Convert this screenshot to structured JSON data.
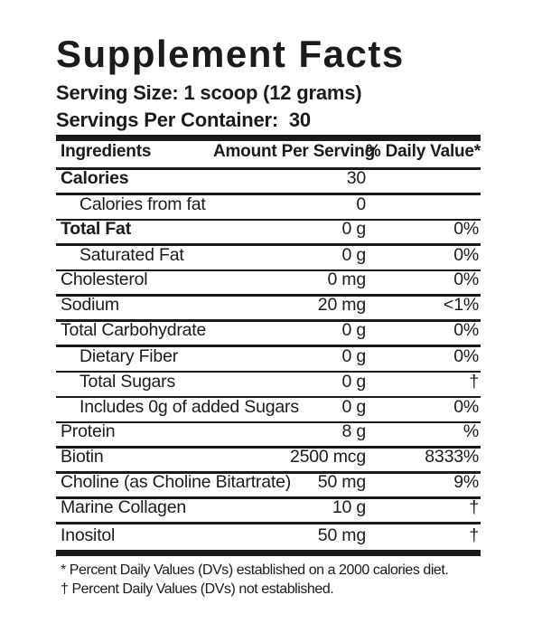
{
  "label": {
    "title": "Supplement Facts",
    "serving_size": "Serving Size: 1 scoop (12 grams)",
    "servings_per_container": "Servings Per Container:  30",
    "table": {
      "headers": {
        "ingredients": "Ingredients",
        "amount": "Amount Per Serving",
        "daily_value": "% Daily Value*"
      },
      "rows": [
        {
          "name": "Calories",
          "amount": "30",
          "dv": "",
          "bold": true,
          "indent": false
        },
        {
          "name": "Calories from fat",
          "amount": "0",
          "dv": "",
          "bold": false,
          "indent": true
        },
        {
          "name": "Total Fat",
          "amount": "0 g",
          "dv": "0%",
          "bold": true,
          "indent": false
        },
        {
          "name": "Saturated Fat",
          "amount": "0 g",
          "dv": "0%",
          "bold": false,
          "indent": true
        },
        {
          "name": "Cholesterol",
          "amount": "0 mg",
          "dv": "0%",
          "bold": false,
          "indent": false
        },
        {
          "name": "Sodium",
          "amount": "20 mg",
          "dv": "<1%",
          "bold": false,
          "indent": false
        },
        {
          "name": "Total Carbohydrate",
          "amount": "0 g",
          "dv": "0%",
          "bold": false,
          "indent": false
        },
        {
          "name": "Dietary Fiber",
          "amount": "0 g",
          "dv": "0%",
          "bold": false,
          "indent": true
        },
        {
          "name": "Total Sugars",
          "amount": "0 g",
          "dv": "†",
          "bold": false,
          "indent": true
        },
        {
          "name": "Includes 0g of added Sugars",
          "amount": "0 g",
          "dv": "0%",
          "bold": false,
          "indent": true
        },
        {
          "name": "Protein",
          "amount": "8 g",
          "dv": "%",
          "bold": false,
          "indent": false
        },
        {
          "name": "Biotin",
          "amount": "2500 mcg",
          "dv": "8333%",
          "bold": false,
          "indent": false
        },
        {
          "name": "Choline (as Choline Bitartrate)",
          "amount": "50 mg",
          "dv": "9%",
          "bold": false,
          "indent": false
        },
        {
          "name": "Marine Collagen",
          "amount": "10 g",
          "dv": "†",
          "bold": false,
          "indent": false
        },
        {
          "name": "Inositol",
          "amount": "50 mg",
          "dv": "†",
          "bold": false,
          "indent": false
        }
      ]
    },
    "footnotes": [
      "* Percent Daily Values (DVs) established on a 2000 calories diet.",
      "† Percent Daily Values (DVs) not established."
    ]
  },
  "colors": {
    "text": "#1c1a1b",
    "background": "#ffffff"
  }
}
